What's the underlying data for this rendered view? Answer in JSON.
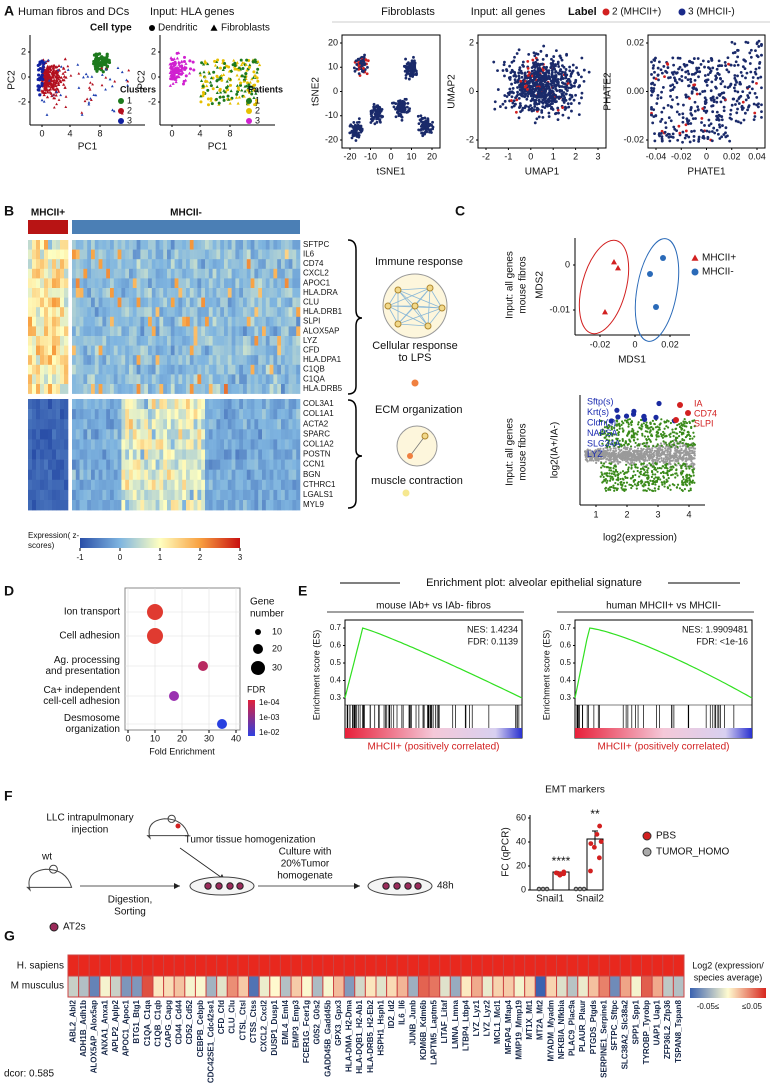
{
  "panel_labels": [
    "A",
    "B",
    "C",
    "D",
    "E",
    "F",
    "G"
  ],
  "panelA": {
    "left_title": "Human fibros and DCs",
    "left_input": "Input: HLA genes",
    "celltype_label": "Cell type",
    "celltypes": [
      "Dendritic",
      "Fibroblasts"
    ],
    "pc1": "PC1",
    "pc2": "PC2",
    "pc_yticks": [
      "2",
      "0",
      "-2"
    ],
    "pc_xticks": [
      "0",
      "4",
      "8"
    ],
    "clusters_title": "Clusters",
    "clusters": [
      "1",
      "2",
      "3"
    ],
    "patients_title": "Patients",
    "patients": [
      "1",
      "2",
      "3"
    ],
    "right_title": "Fibroblasts",
    "right_input": "Input: all genes",
    "label_title": "Label",
    "labels": [
      "2 (MHCII+)",
      "3 (MHCII-)"
    ],
    "tsne": {
      "xlabel": "tSNE1",
      "ylabel": "tSNE2",
      "xticks": [
        "-20",
        "-10",
        "0",
        "10",
        "20"
      ],
      "yticks": [
        "20",
        "10",
        "0",
        "-10",
        "-20"
      ]
    },
    "umap": {
      "xlabel": "UMAP1",
      "ylabel": "UMAP2",
      "xticks": [
        "-2",
        "-1",
        "0",
        "1",
        "2",
        "3"
      ],
      "yticks": [
        "2",
        "0",
        "-2"
      ]
    },
    "phate": {
      "xlabel": "PHATE1",
      "ylabel": "PHATE2",
      "xticks": [
        "-0.04",
        "-0.02",
        "0",
        "0.02",
        "0.04"
      ],
      "yticks": [
        "0.02",
        "0.00",
        "-0.02"
      ]
    }
  },
  "panelB": {
    "plus_header": "MHCII+",
    "minus_header": "MHCII-",
    "immune_genes": [
      "SFTPC",
      "IL6",
      "CD74",
      "CXCL2",
      "APOC1",
      "HLA.DRA",
      "CLU",
      "HLA.DRB1",
      "SLPI",
      "ALOX5AP",
      "LYZ",
      "CFD",
      "HLA.DPA1",
      "C1QB",
      "C1QA",
      "HLA.DRB5"
    ],
    "ecm_genes": [
      "COL3A1",
      "COL1A1",
      "ACTA2",
      "SPARC",
      "COL1A2",
      "POSTN",
      "CCN1",
      "BGN",
      "CTHRC1",
      "LGALS1",
      "MYL9"
    ],
    "immune_term": "Immune response",
    "lps_term": [
      "Cellular response",
      "to LPS"
    ],
    "ecm_term": "ECM organization",
    "muscle_term": "muscle  contraction",
    "colorbar_label": [
      "Expression( z-",
      "scores)"
    ],
    "colorbar_ticks": [
      "-1",
      "0",
      "1",
      "2",
      "3"
    ]
  },
  "panelC": {
    "input_label": [
      "Input: all genes",
      "mouse fibros"
    ],
    "mds": {
      "xlabel": "MDS1",
      "ylabel": "MDS2",
      "xticks": [
        "-0.02",
        "0",
        "0.02"
      ],
      "yticks": [
        "0",
        "-0.01"
      ],
      "legend": [
        "MHCII+",
        "MHCII-"
      ]
    },
    "ma": {
      "xlabel": "log2(expression)",
      "ylabel": "log2(IA+/IA-)",
      "xticks": [
        "1",
        "2",
        "3",
        "4"
      ],
      "blue_genes": [
        "Sftp(s)",
        "Krt(s)",
        "Cldn(s)",
        "NAPSA",
        "SLC34A",
        "LYZ"
      ],
      "red_genes": [
        "IA",
        "CD74",
        "SLPI"
      ]
    }
  },
  "panelD": {
    "terms": [
      [
        "Ion transport"
      ],
      [
        "Cell adhesion"
      ],
      [
        "Ag. processing",
        "and presentation"
      ],
      [
        "Ca+ independent",
        "cell-cell adhesion"
      ],
      [
        "Desmosome",
        "organization"
      ]
    ],
    "xlabel": "Fold Enrichment",
    "xticks": [
      "0",
      "10",
      "20",
      "30",
      "40"
    ],
    "size_title": [
      "Gene",
      "number"
    ],
    "size_ticks": [
      "10",
      "20",
      "30"
    ],
    "fdr_title": "FDR",
    "fdr_ticks": [
      "1e-04",
      "1e-03",
      "1e-02"
    ]
  },
  "panelE": {
    "header": "Enrichment plot: alveolar epithelial signature",
    "ylabel": "Enrichment score (ES)",
    "yticks": [
      "0.7",
      "0.6",
      "0.5",
      "0.4",
      "0.3"
    ],
    "plots": [
      {
        "title": "mouse IAb+ vs IAb- fibros",
        "nes": "NES: 1.4234",
        "fdr": "FDR: 0.1139",
        "caption": "MHCII+ (positively correlated)"
      },
      {
        "title": "human MHCII+ vs MHCII-",
        "nes": "NES: 1.9909481",
        "fdr": "FDR: <1e-16",
        "caption": "MHCII+ (positively correlated)"
      }
    ]
  },
  "panelF": {
    "injection": [
      "LLC intrapulmonary",
      "injection"
    ],
    "homogenization": "Tumor tissue homogenization",
    "wt": "wt",
    "digestion": [
      "Digestion,",
      "Sorting"
    ],
    "at2": "AT2s",
    "culture": [
      "Culture with",
      "20%Tumor",
      "homogenate"
    ],
    "time": "48h",
    "bar_title": "EMT markers",
    "ylabel": "FC (qPCR)",
    "yticks": [
      "0",
      "20",
      "40",
      "60"
    ],
    "categories": [
      "Snail1",
      "Snail2"
    ],
    "significance": [
      "****",
      "**"
    ],
    "legend": [
      "PBS",
      "TUMOR_HOMO"
    ]
  },
  "panelG": {
    "rows": [
      "H. sapiens",
      "M musculus"
    ],
    "genes": [
      "ABL2_Abl2",
      "ADH1B_Adh1b",
      "ALOX5AP_Alox5ap",
      "ANXA1_Anxa1",
      "APLP2_Aplp2",
      "APOC1_Apoc1",
      "BTG1_Btg1",
      "C1QA_C1qa",
      "C1QB_C1qb",
      "CAPG_Capg",
      "CD44_Cd44",
      "CD52_Cd52",
      "CEBPB_Cebpb",
      "CDC42SE1_Cdc42se1",
      "CFD_Cfd",
      "CLU_Clu",
      "CTSL_Ctsl",
      "CTSS_Ctss",
      "CXCL2_Cxcl2",
      "DUSP1_Dusp1",
      "EML4_Eml4",
      "EMP3_Emp3",
      "FCER1G_Fcer1g",
      "G0S2_G0s2",
      "GADD45B_Gadd45b",
      "GPX3_Gpx3",
      "HLA-DMA_H2-Dma",
      "HLA-DQB1_H2-Ab1",
      "HLA-DRB5_H2-Eb2",
      "HSPH1_Hsph1",
      "ID2_Id2",
      "IL6_Il6",
      "JUNB_Junb",
      "KDM6B_Kdm6b",
      "LAPTM5_Laptm5",
      "LITAF_Litaf",
      "LMNA_Lmna",
      "LTBP4_Ltbp4",
      "LYZ_Lyz1",
      "LYZ_Lyz2",
      "MCL1_Mcl1",
      "MFAP4_Mfap4",
      "MMP19_Mmp19",
      "MT1X_Mt1",
      "MT2A_Mt2",
      "MYADM_Myadm",
      "NFKBIA_Nfkbia",
      "PLAC9_Plac9a",
      "PLAUR_Plaur",
      "PTGDS_Ptgds",
      "SERPINE1_Serpine1",
      "SFTPC_Sftpc",
      "SLC38A2_Slc38a2",
      "SPP1_Spp1",
      "TYROBP_Tyrobp",
      "UAP1_Uap1",
      "ZFP36L2_Zfp36",
      "TSPAN8_Tspan8"
    ],
    "legend_title": [
      "Log2 (expression/",
      "species average)"
    ],
    "legend_ticks": [
      "-0.05≤",
      "≤0.05"
    ],
    "dcor": "dcor: 0.585"
  }
}
